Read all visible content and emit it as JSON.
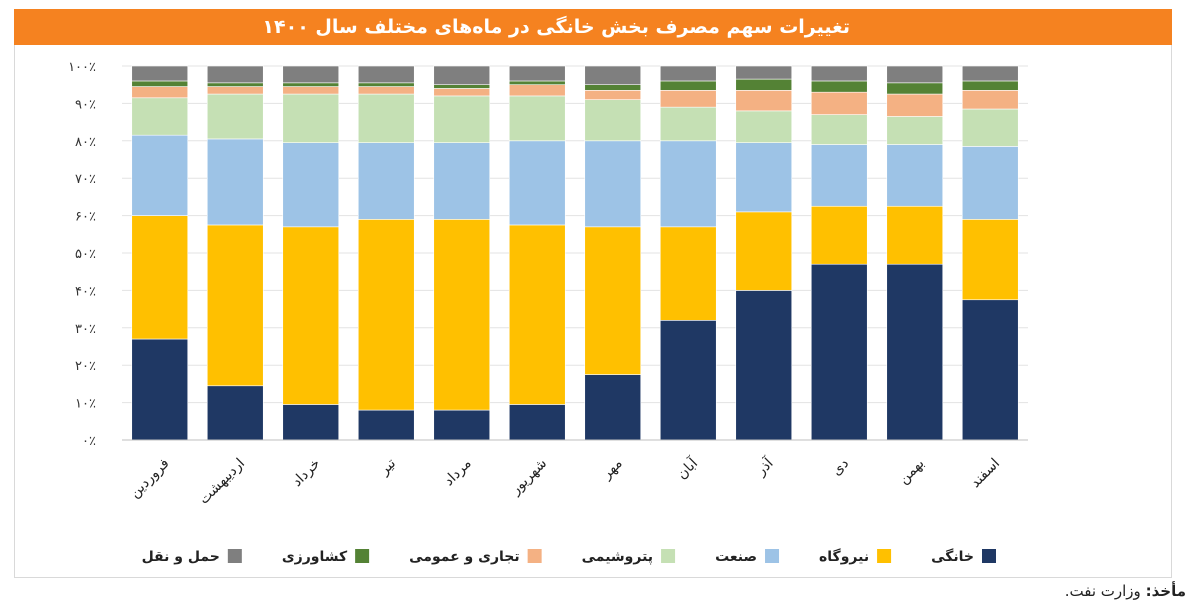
{
  "title": "تغییرات سهم مصرف بخش خانگی در ماه‌های مختلف سال ۱۴۰۰",
  "source": {
    "label": "مأخذ:",
    "value": "وزارت نفت."
  },
  "colors": {
    "banner": "#f58220",
    "series": [
      "#1f3864",
      "#ffc000",
      "#9dc3e6",
      "#c5e0b4",
      "#f4b183",
      "#548235",
      "#7f7f7f"
    ]
  },
  "chart_data": {
    "type": "bar",
    "stacked": true,
    "percent": true,
    "ylim": [
      0,
      100
    ],
    "yticks": [
      "۰٪",
      "۱۰٪",
      "۲۰٪",
      "۳۰٪",
      "۴۰٪",
      "۵۰٪",
      "۶۰٪",
      "۷۰٪",
      "۸۰٪",
      "۹۰٪",
      "۱۰۰٪"
    ],
    "categories": [
      "فروردین",
      "اردیبهشت",
      "خرداد",
      "تیر",
      "مرداد",
      "شهریور",
      "مهر",
      "آبان",
      "آذر",
      "دی",
      "بهمن",
      "اسفند"
    ],
    "legend_position": "bottom",
    "series": [
      {
        "name": "خانگی",
        "values": [
          27,
          14.5,
          9.5,
          8,
          8,
          9.5,
          17.5,
          32,
          40,
          47,
          47,
          37.5
        ]
      },
      {
        "name": "نیروگاه",
        "values": [
          33,
          43,
          47.5,
          51,
          51,
          48,
          39.5,
          25,
          21,
          15.5,
          15.5,
          21.5
        ]
      },
      {
        "name": "صنعت",
        "values": [
          21.5,
          23,
          22.5,
          20.5,
          20.5,
          22.5,
          23,
          23,
          18.5,
          16.5,
          16.5,
          19.5
        ]
      },
      {
        "name": "پتروشیمی",
        "values": [
          10,
          12,
          13,
          13,
          12.5,
          12,
          11,
          9,
          8.5,
          8,
          7.5,
          10
        ]
      },
      {
        "name": "تجاری و عمومی",
        "values": [
          3,
          2,
          2,
          2,
          2,
          3,
          2.5,
          4.5,
          5.5,
          6,
          6,
          5
        ]
      },
      {
        "name": "کشاورزی",
        "values": [
          1.5,
          1,
          1,
          1,
          1,
          1,
          1.5,
          2.5,
          3,
          3,
          3,
          2.5
        ]
      },
      {
        "name": "حمل و نقل",
        "values": [
          4,
          4.5,
          4.5,
          4.5,
          5,
          4,
          5,
          4,
          3.5,
          4,
          4.5,
          4
        ]
      }
    ]
  }
}
